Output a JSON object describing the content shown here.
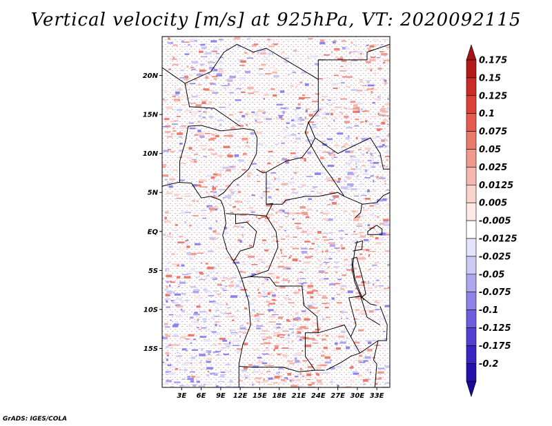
{
  "title": "Vertical velocity [m/s] at 925hPa, VT: 2020092115",
  "credit": "GrADS: IGES/COLA",
  "map": {
    "region": "Central Africa",
    "lon_range": [
      0,
      35
    ],
    "lat_range": [
      -20,
      25
    ],
    "lat_ticks": [
      "20N",
      "15N",
      "10N",
      "5N",
      "EQ",
      "5S",
      "10S",
      "15S"
    ],
    "lon_ticks": [
      "3E",
      "6E",
      "9E",
      "12E",
      "15E",
      "18E",
      "21E",
      "24E",
      "27E",
      "30E",
      "33E"
    ],
    "field": "vertical velocity at 925hPa",
    "positive_color": "#c8201e",
    "negative_color": "#2b1db8",
    "border_color": "#000000"
  },
  "colorbar": {
    "orientation": "vertical",
    "arrows_at_ends": true,
    "levels": [
      {
        "label": "0.175",
        "color": "#b2191a"
      },
      {
        "label": "0.15",
        "color": "#c92b26"
      },
      {
        "label": "0.125",
        "color": "#dc4138"
      },
      {
        "label": "0.1",
        "color": "#e45c4f"
      },
      {
        "label": "0.075",
        "color": "#ea7a6c"
      },
      {
        "label": "0.05",
        "color": "#f0998d"
      },
      {
        "label": "0.025",
        "color": "#f6b8ae"
      },
      {
        "label": "0.0125",
        "color": "#fad4cc"
      },
      {
        "label": "0.005",
        "color": "#fde9e5"
      },
      {
        "label": "-0.005",
        "color": "#ffffff"
      },
      {
        "label": "-0.0125",
        "color": "#e6e4fb"
      },
      {
        "label": "-0.025",
        "color": "#cdc9f5"
      },
      {
        "label": "-0.05",
        "color": "#aea6ef"
      },
      {
        "label": "-0.075",
        "color": "#8e84e8"
      },
      {
        "label": "-0.1",
        "color": "#6d5fdc"
      },
      {
        "label": "-0.125",
        "color": "#5240cf"
      },
      {
        "label": "-0.175",
        "color": "#3a25c0"
      },
      {
        "label": "-0.2",
        "color": "#2710a8"
      }
    ],
    "top_arrow_color": "#a3151a",
    "bottom_arrow_color": "#1a0a9a"
  }
}
